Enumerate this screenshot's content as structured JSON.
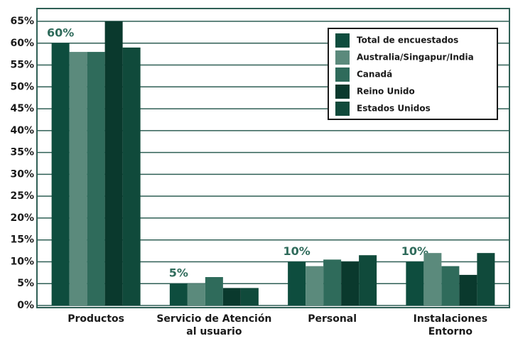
{
  "chart_data": {
    "type": "bar",
    "categories": [
      "Productos",
      "Servicio de Atención\nal usuario",
      "Personal",
      "Instalaciones\nEntorno"
    ],
    "series": [
      {
        "name": "Total de encuestados",
        "color": "#0e4d3e",
        "values": [
          60,
          5,
          10,
          10
        ],
        "value_labels": [
          "60%",
          "5%",
          "10%",
          "10%"
        ]
      },
      {
        "name": "Australia/Singapur/India",
        "color": "#5b8a7c",
        "values": [
          58,
          5,
          9,
          12
        ]
      },
      {
        "name": "Canadá",
        "color": "#2f6b5b",
        "values": [
          58,
          6.5,
          10.5,
          9
        ]
      },
      {
        "name": "Reino Unido",
        "color": "#0a392d",
        "values": [
          65,
          4,
          10,
          7
        ]
      },
      {
        "name": "Estados Unidos",
        "color": "#104a3b",
        "values": [
          59,
          4,
          11.5,
          12
        ]
      }
    ],
    "ylim": [
      0,
      65
    ],
    "yticks": [
      {
        "value": 0,
        "label": "0%"
      },
      {
        "value": 5,
        "label": "5%"
      },
      {
        "value": 10,
        "label": "10%"
      },
      {
        "value": 15,
        "label": "15%"
      },
      {
        "value": 20,
        "label": "20%"
      },
      {
        "value": 25,
        "label": "25%"
      },
      {
        "value": 30,
        "label": "30%"
      },
      {
        "value": 35,
        "label": "35%"
      },
      {
        "value": 40,
        "label": "40%"
      },
      {
        "value": 45,
        "label": "45%"
      },
      {
        "value": 50,
        "label": "50%"
      },
      {
        "value": 55,
        "label": "55%"
      },
      {
        "value": 60,
        "label": "60%"
      },
      {
        "value": 65,
        "label": "65%"
      }
    ],
    "grid": true,
    "legend": "top-right"
  }
}
